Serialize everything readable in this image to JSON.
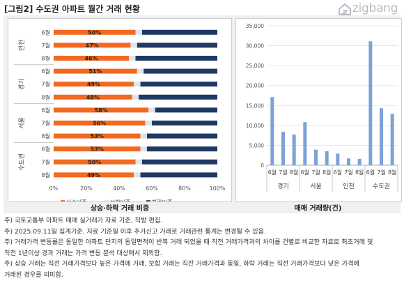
{
  "title": "[그림2] 수도권 아파트 월간 거래 현황",
  "logo": {
    "text": "zigbang",
    "icon": "zigbang-logo-icon"
  },
  "colors": {
    "up": "#f26a21",
    "flat": "#dbe4f0",
    "down": "#1f3864",
    "bar": "#7ea1d8"
  },
  "chart_data": [
    {
      "type": "bar",
      "orientation": "horizontal",
      "stacked": true,
      "title": "상승·하락 거래 비중",
      "groups": [
        "인천",
        "경기",
        "서울",
        "수도권"
      ],
      "months": [
        "6월",
        "7월",
        "8월"
      ],
      "categories": [
        "인천 6월",
        "인천 7월",
        "인천 8월",
        "경기 6월",
        "경기 7월",
        "경기 8월",
        "서울 6월",
        "서울 7월",
        "서울 8월",
        "수도권 6월",
        "수도권 7월",
        "수도권 8월"
      ],
      "series": [
        {
          "name": "상승비중",
          "values": [
            50,
            47,
            46,
            51,
            49,
            48,
            58,
            56,
            53,
            53,
            50,
            49
          ]
        },
        {
          "name": "보합비중",
          "values": [
            4,
            4,
            4,
            4,
            4,
            4,
            4,
            4,
            4,
            4,
            4,
            4
          ]
        },
        {
          "name": "하락비중",
          "values": [
            46,
            49,
            50,
            45,
            47,
            48,
            38,
            40,
            43,
            43,
            46,
            47
          ]
        }
      ],
      "data_labels": [
        "50%",
        "47%",
        "46%",
        "51%",
        "49%",
        "48%",
        "58%",
        "56%",
        "53%",
        "53%",
        "50%",
        "49%"
      ],
      "xticks": [
        "0%",
        "20%",
        "40%",
        "60%",
        "80%",
        "100%"
      ],
      "xlim": [
        0,
        100
      ],
      "legend": "bottom"
    },
    {
      "type": "bar",
      "title": "매매 거래량(건)",
      "groups": [
        "경기",
        "서울",
        "인천",
        "수도권"
      ],
      "months": [
        "6월",
        "7월",
        "8월"
      ],
      "categories": [
        "경기 6월",
        "경기 7월",
        "경기 8월",
        "서울 6월",
        "서울 7월",
        "서울 8월",
        "인천 6월",
        "인천 7월",
        "인천 8월",
        "수도권 6월",
        "수도권 7월",
        "수도권 8월"
      ],
      "values": [
        17100,
        8400,
        7700,
        10800,
        3900,
        3500,
        2900,
        1700,
        1600,
        31100,
        14300,
        12900
      ],
      "yticks": [
        "0",
        "5,000",
        "10,000",
        "15,000",
        "20,000",
        "25,000",
        "30,000",
        "35,000"
      ],
      "ylim": [
        0,
        35000
      ],
      "grid": true
    }
  ],
  "notes": [
    "주) 국토교통부 아파트 매매 실거래가 자료 기준, 직방 편집.",
    "주)  2025.09.11일 집계기준. 자료 기준일 이후 추가신고 거래로 거래관련 통계는 변경될 수 있음.",
    "주) 거래가격 변동률은 동일한 아파트 단지의 동일면적이 반복 거래 되었을 때 직전 거래가격과의 차이를 건별로 비교한 자료로 최초거래 및",
    "직전 1년이상 경과 거래는 가격 변동 분석 대상에서 제외함.",
    "주) 상승 거래는 직전 거래가격보다 높은 가격에 거래, 보합 거래는 직전 거래가격과 동일, 하락 거래는 직전 거래가격보다 낮은 가격에",
    "거래된 경우를 의미함."
  ]
}
